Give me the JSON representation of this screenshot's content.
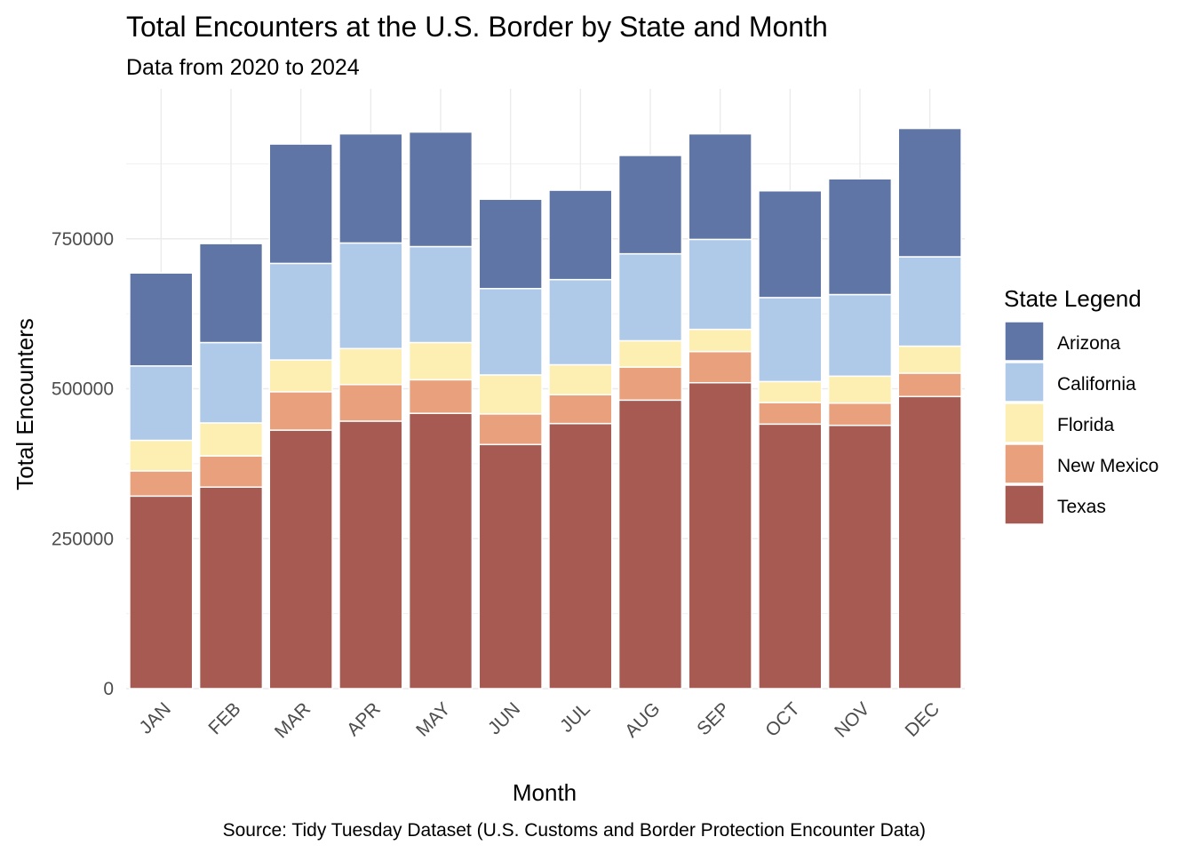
{
  "chart_data": {
    "type": "bar",
    "stacked": true,
    "title": "Total Encounters at the U.S. Border by State and Month",
    "subtitle": "Data from 2020 to 2024",
    "xlabel": "Month",
    "ylabel": "Total Encounters",
    "caption": "Source: Tidy Tuesday Dataset (U.S. Customs and Border Protection Encounter Data)",
    "ylim": [
      0,
      1000000
    ],
    "y_ticks": [
      0,
      250000,
      500000,
      750000
    ],
    "y_tick_labels": [
      "0",
      "250000",
      "500000",
      "750000"
    ],
    "grid": true,
    "categories": [
      "JAN",
      "FEB",
      "MAR",
      "APR",
      "MAY",
      "JUN",
      "JUL",
      "AUG",
      "SEP",
      "OCT",
      "NOV",
      "DEC"
    ],
    "legend": {
      "title": "State Legend",
      "position": "right",
      "entries": [
        "Arizona",
        "California",
        "Florida",
        "New Mexico",
        "Texas"
      ]
    },
    "series": [
      {
        "name": "Texas",
        "color": "#a65a52",
        "values": [
          321000,
          336000,
          431000,
          446000,
          459000,
          407000,
          442000,
          481000,
          510000,
          441000,
          439000,
          487000
        ]
      },
      {
        "name": "New Mexico",
        "color": "#e9a07c",
        "values": [
          42000,
          52000,
          64000,
          61000,
          56000,
          51000,
          48000,
          55000,
          52000,
          36000,
          37000,
          39000
        ]
      },
      {
        "name": "Florida",
        "color": "#fdefb2",
        "values": [
          51000,
          55000,
          53000,
          60000,
          62000,
          65000,
          50000,
          44000,
          37000,
          35000,
          45000,
          45000
        ]
      },
      {
        "name": "California",
        "color": "#aecae8",
        "values": [
          124000,
          134000,
          161000,
          176000,
          160000,
          144000,
          142000,
          145000,
          150000,
          140000,
          136000,
          149000
        ]
      },
      {
        "name": "Arizona",
        "color": "#5e75a5",
        "values": [
          155000,
          165000,
          199000,
          182000,
          191000,
          149000,
          149000,
          164000,
          176000,
          178000,
          193000,
          214000
        ]
      }
    ]
  }
}
